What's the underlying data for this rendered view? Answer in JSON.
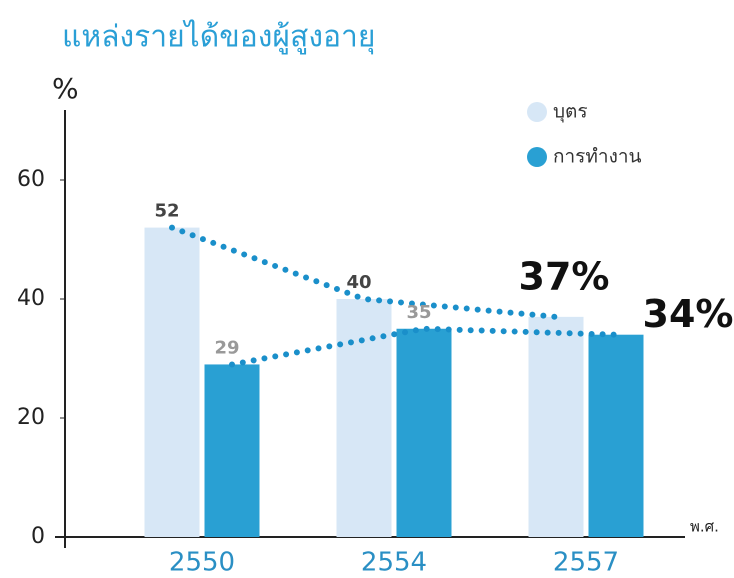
{
  "chart_data": {
    "type": "bar",
    "title": "แหล่งรายได้ของผู้สูงอายุ",
    "y_label": "%",
    "x_label": "พ.ศ.",
    "categories": [
      "2550",
      "2554",
      "2557"
    ],
    "series": [
      {
        "name": "บุตร",
        "color": "#d7e7f6",
        "values": [
          52,
          40,
          37
        ],
        "value_labels": [
          "52",
          "40",
          "37%"
        ]
      },
      {
        "name": "การทำงาน",
        "color": "#29a0d3",
        "values": [
          29,
          35,
          34
        ],
        "value_labels": [
          "29",
          "35",
          "34%"
        ]
      }
    ],
    "line_color": "#1a8fca",
    "ylim": [
      0,
      70
    ],
    "yticks": [
      0,
      20,
      40,
      60
    ]
  }
}
